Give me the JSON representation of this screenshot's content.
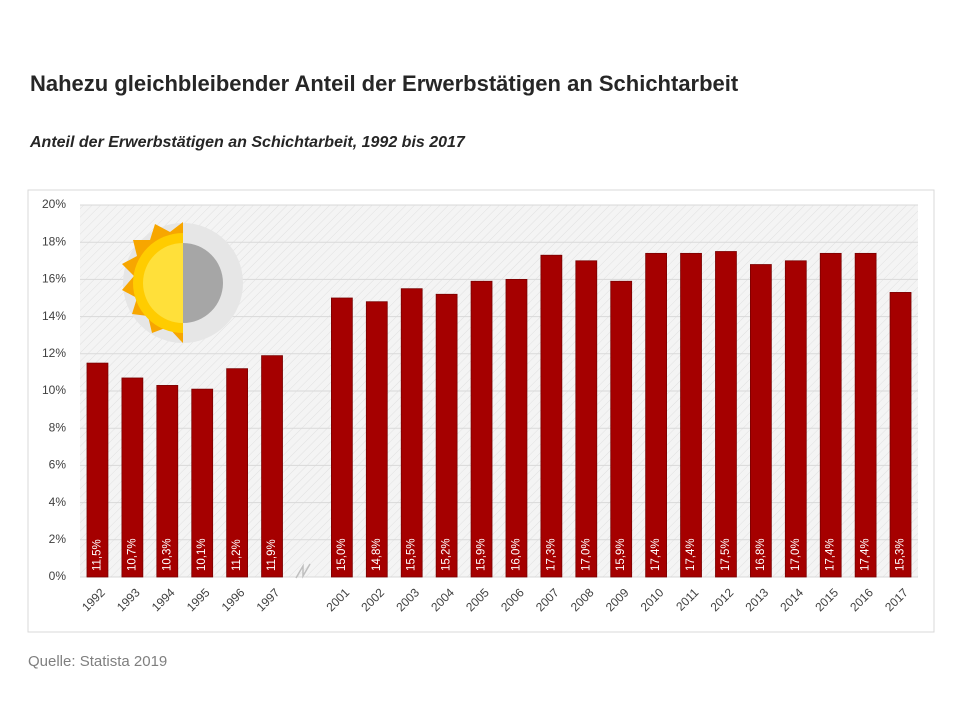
{
  "chart_data": {
    "type": "bar",
    "title": "Nahezu gleichbleibender Anteil der Erwerbstätigen an Schichtarbeit",
    "subtitle": "Anteil der Erwerbstätigen an Schichtarbeit, 1992 bis 2017",
    "source": "Quelle: Statista 2019",
    "categories": [
      "1992",
      "1993",
      "1994",
      "1995",
      "1996",
      "1997",
      null,
      "2001",
      "2002",
      "2003",
      "2004",
      "2005",
      "2006",
      "2007",
      "2008",
      "2009",
      "2010",
      "2011",
      "2012",
      "2013",
      "2014",
      "2015",
      "2016",
      "2017"
    ],
    "values": [
      11.5,
      10.7,
      10.3,
      10.1,
      11.2,
      11.9,
      null,
      15.0,
      14.8,
      15.5,
      15.2,
      15.9,
      16.0,
      17.3,
      17.0,
      15.9,
      17.4,
      17.4,
      17.5,
      16.8,
      17.0,
      17.4,
      17.4,
      15.3
    ],
    "value_labels": [
      "11,5%",
      "10,7%",
      "10,3%",
      "10,1%",
      "11,2%",
      "11,9%",
      null,
      "15,0%",
      "14,8%",
      "15,5%",
      "15,2%",
      "15,9%",
      "16,0%",
      "17,3%",
      "17,0%",
      "15,9%",
      "17,4%",
      "17,4%",
      "17,5%",
      "16,8%",
      "17,0%",
      "17,4%",
      "17,4%",
      "15,3%"
    ],
    "color": "#a50000",
    "ylim": [
      0,
      20
    ],
    "yticks": [
      {
        "value": 0,
        "label": "0%"
      },
      {
        "value": 2,
        "label": "2%"
      },
      {
        "value": 4,
        "label": "4%"
      },
      {
        "value": 6,
        "label": "6%"
      },
      {
        "value": 8,
        "label": "8%"
      },
      {
        "value": 10,
        "label": "10%"
      },
      {
        "value": 12,
        "label": "12%"
      },
      {
        "value": 14,
        "label": "14%"
      },
      {
        "value": 16,
        "label": "16%"
      },
      {
        "value": 18,
        "label": "18%"
      },
      {
        "value": 20,
        "label": "20%"
      }
    ],
    "grid": true
  }
}
